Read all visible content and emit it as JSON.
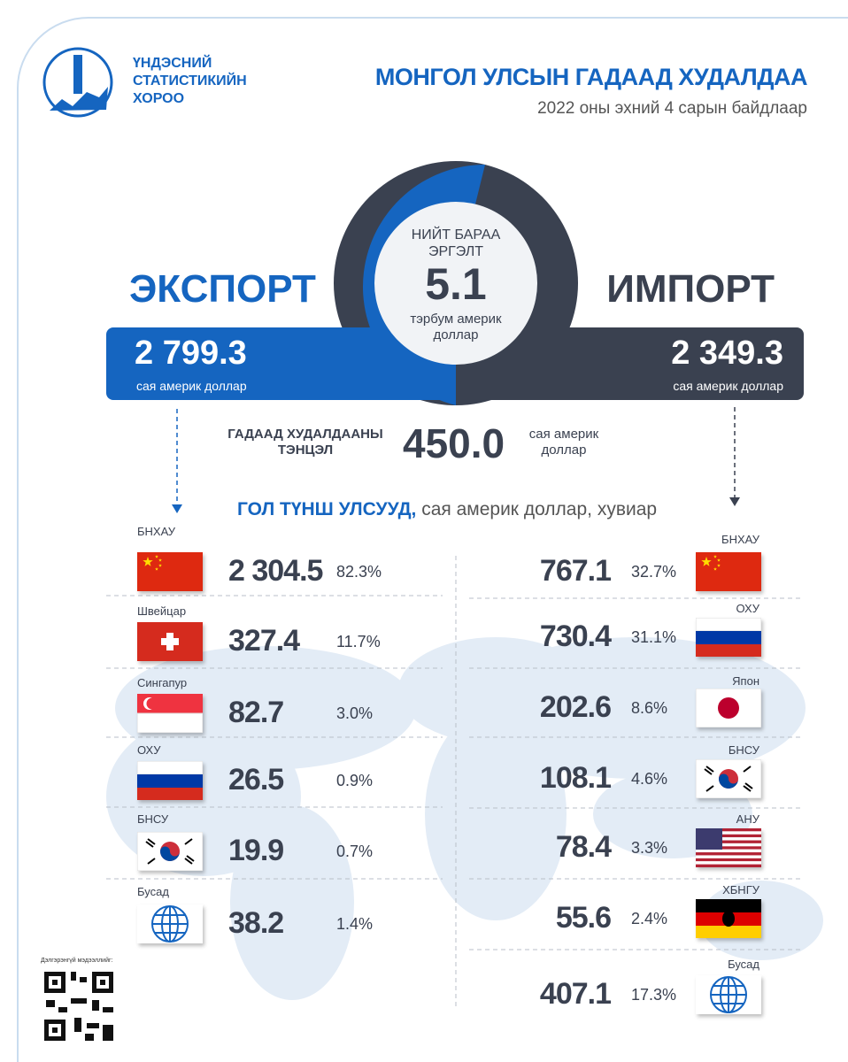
{
  "header": {
    "org": [
      "ҮНДЭСНИЙ",
      "СТАТИСТИКИЙН",
      "ХОРОО"
    ],
    "title": "МОНГОЛ УЛСЫН ГАДААД ХУДАЛДАА",
    "subtitle": "2022 оны эхний 4 сарын байдлаар"
  },
  "turnover": {
    "label": "НИЙТ БАРАА ЭРГЭЛТ",
    "value": "5.1",
    "unit": "тэрбум америк доллар"
  },
  "export": {
    "title": "ЭКСПОРТ",
    "value": "2 799.3",
    "unit": "сая америк доллар"
  },
  "import": {
    "title": "ИМПОРТ",
    "value": "2 349.3",
    "unit": "сая америк доллар"
  },
  "balance": {
    "label": "ГАДААД ХУДАЛДААНЫ ТЭНЦЭЛ",
    "value": "450.0",
    "unit": "сая америк доллар"
  },
  "partners_heading": {
    "bold": "ГОЛ ТҮНШ УЛСУУД,",
    "rest": "сая америк доллар, хувиар"
  },
  "export_partners": [
    {
      "country": "БНХАУ",
      "value": "2 304.5",
      "share": "82.3%"
    },
    {
      "country": "Швейцар",
      "value": "327.4",
      "share": "11.7%"
    },
    {
      "country": "Сингапур",
      "value": "82.7",
      "share": "3.0%"
    },
    {
      "country": "ОХУ",
      "value": "26.5",
      "share": "0.9%"
    },
    {
      "country": "БНСУ",
      "value": "19.9",
      "share": "0.7%"
    },
    {
      "country": "Бусад",
      "value": "38.2",
      "share": "1.4%"
    }
  ],
  "import_partners": [
    {
      "country": "БНХАУ",
      "value": "767.1",
      "share": "32.7%"
    },
    {
      "country": "ОХУ",
      "value": "730.4",
      "share": "31.1%"
    },
    {
      "country": "Япон",
      "value": "202.6",
      "share": "8.6%"
    },
    {
      "country": "БНСУ",
      "value": "108.1",
      "share": "4.6%"
    },
    {
      "country": "АНУ",
      "value": "78.4",
      "share": "3.3%"
    },
    {
      "country": "ХБНГУ",
      "value": "55.6",
      "share": "2.4%"
    },
    {
      "country": "Бусад",
      "value": "407.1",
      "share": "17.3%"
    }
  ],
  "qr_label": "Дэлгэрэнгүй мэдээллийг:"
}
